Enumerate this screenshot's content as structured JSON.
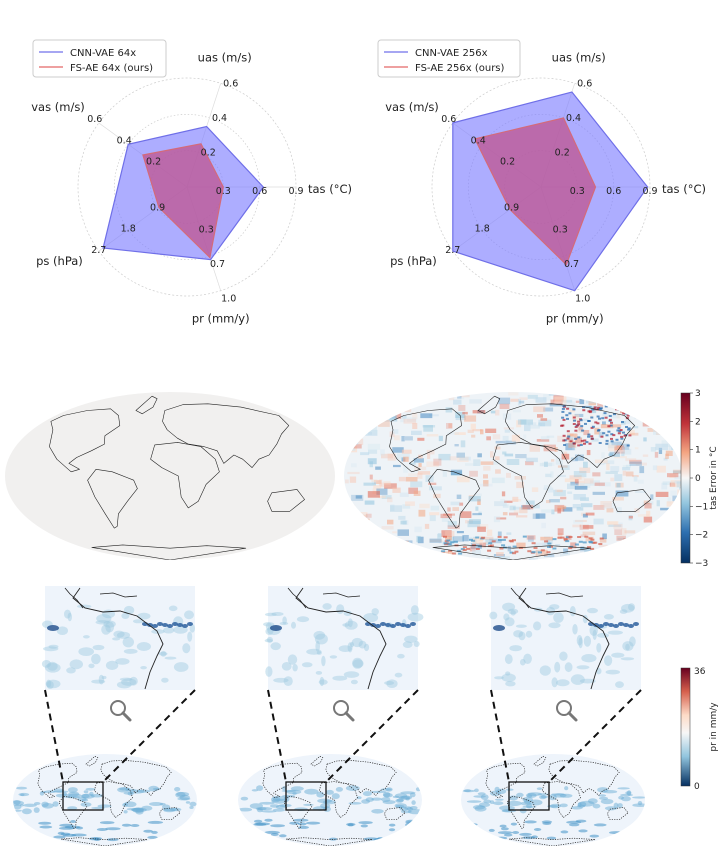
{
  "colors": {
    "cnn_vae": "#7b7bff",
    "cnn_vae_edge": "#6f6fe8",
    "fs_ae": "#c0508a",
    "fs_ae_edge": "#d46a7a",
    "legend_cnn_line": "#8888ee",
    "legend_fs_line": "#e88080",
    "map_ocean_base": "#f4f6f8",
    "map_coast": "#222222"
  },
  "chart_data": [
    {
      "type": "radar",
      "legend": [
        "CNN-VAE 64x",
        "FS-AE 64x (ours)"
      ],
      "legend_position": "top-left",
      "axes": [
        {
          "name": "uas (m/s)",
          "ticks": [
            "0.2",
            "0.4",
            "0.6"
          ],
          "max": 0.6
        },
        {
          "name": "tas (°C)",
          "ticks": [
            "0.3",
            "0.6",
            "0.9"
          ],
          "max": 0.9
        },
        {
          "name": "pr (mm/y)",
          "ticks": [
            "0.3",
            "0.7",
            "1.0"
          ],
          "max": 1.0
        },
        {
          "name": "ps (hPa)",
          "ticks": [
            "0.9",
            "1.8",
            "2.7"
          ],
          "max": 2.7
        },
        {
          "name": "vas (m/s)",
          "ticks": [
            "0.2",
            "0.4",
            "0.6"
          ],
          "max": 0.6
        }
      ],
      "series": [
        {
          "name": "CNN-VAE 64x",
          "values": [
            0.35,
            0.63,
            0.7,
            2.57,
            0.4
          ]
        },
        {
          "name": "FS-AE 64x (ours)",
          "values": [
            0.25,
            0.3,
            0.68,
            0.86,
            0.3
          ]
        }
      ]
    },
    {
      "type": "radar",
      "legend": [
        "CNN-VAE 256x",
        "FS-AE 256x (ours)"
      ],
      "legend_position": "top-left",
      "axes": [
        {
          "name": "uas (m/s)",
          "ticks": [
            "0.2",
            "0.4",
            "0.6"
          ],
          "max": 0.6
        },
        {
          "name": "tas (°C)",
          "ticks": [
            "0.3",
            "0.6",
            "0.9"
          ],
          "max": 0.9
        },
        {
          "name": "pr (mm/y)",
          "ticks": [
            "0.3",
            "0.7",
            "1.0"
          ],
          "max": 1.0
        },
        {
          "name": "ps (hPa)",
          "ticks": [
            "0.9",
            "1.8",
            "2.7"
          ],
          "max": 2.7
        },
        {
          "name": "vas (m/s)",
          "ticks": [
            "0.2",
            "0.4",
            "0.6"
          ],
          "max": 0.6
        }
      ],
      "series": [
        {
          "name": "CNN-VAE 256x",
          "values": [
            0.55,
            0.88,
            1.0,
            2.7,
            0.6
          ]
        },
        {
          "name": "FS-AE 256x (ours)",
          "values": [
            0.4,
            0.45,
            0.75,
            0.95,
            0.45
          ]
        }
      ]
    },
    {
      "type": "heatmap",
      "maps": [
        "tas error map 1",
        "tas error map 2"
      ],
      "colorbar": {
        "label": "tas Error in °C",
        "ticks": [
          "3",
          "2",
          "1",
          "0",
          "−1",
          "−2",
          "−3"
        ],
        "range": [
          -3,
          3
        ]
      }
    },
    {
      "type": "heatmap",
      "maps": [
        "pr map 1",
        "pr map 2",
        "pr map 3"
      ],
      "colorbar": {
        "label": "pr in mm/y",
        "ticks": [
          "36",
          "0"
        ],
        "range": [
          0,
          36
        ]
      }
    }
  ],
  "icons": {
    "zoom": "magnifier-icon"
  }
}
